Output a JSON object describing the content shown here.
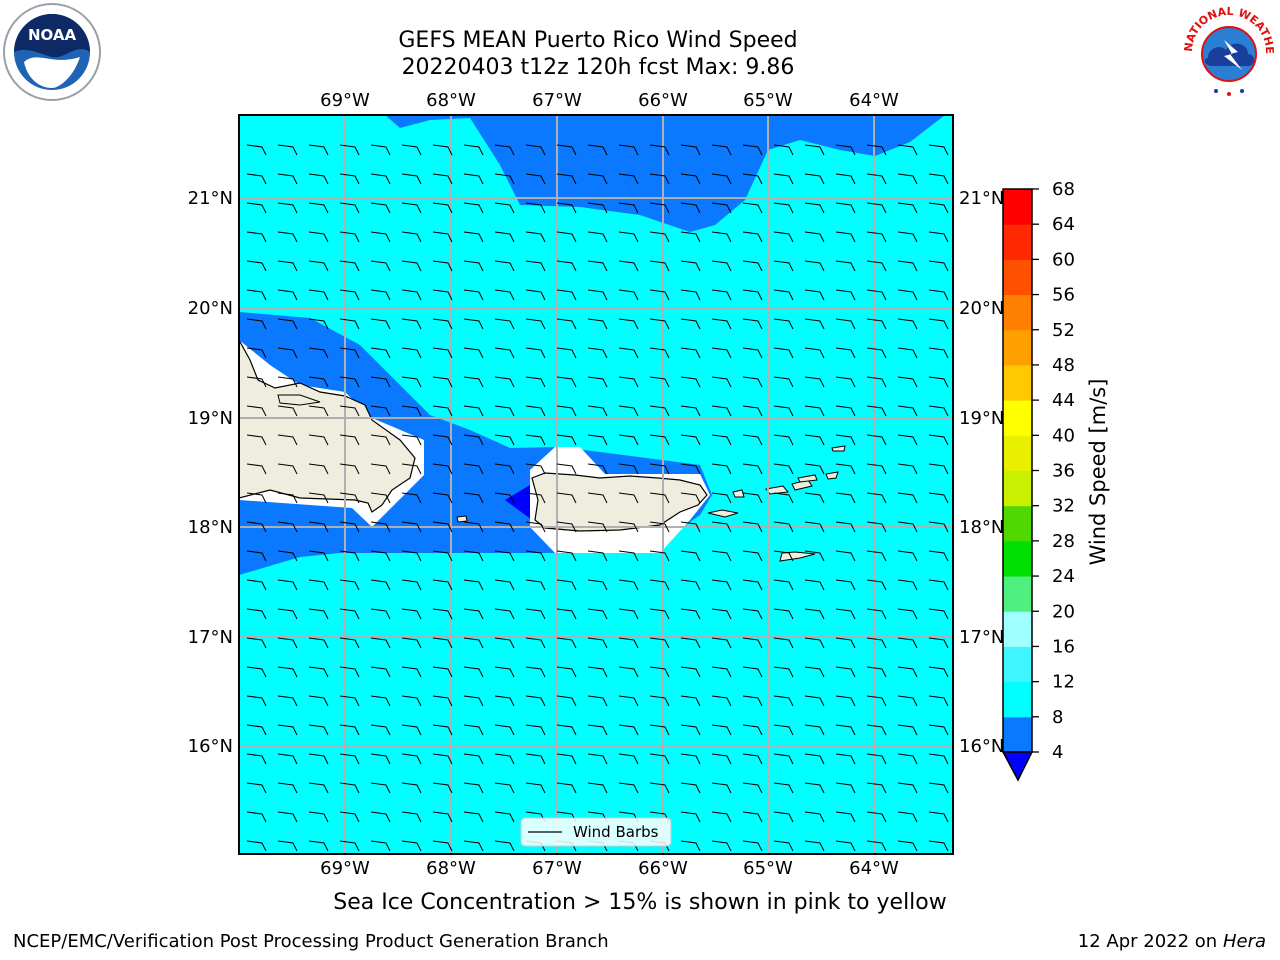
{
  "title_line1": "GEFS MEAN Puerto Rico Wind Speed",
  "title_line2": "20220403 t12z 120h fcst   Max: 9.86",
  "caption": "Sea Ice Concentration > 15% is shown in pink to yellow",
  "footer_left": "NCEP/EMC/Verification Post Processing Product Generation Branch",
  "footer_date": "12 Apr 2022 on ",
  "footer_machine": "Hera",
  "logos": {
    "left": "NOAA",
    "right": "NATIONAL WEATHER SERVICE"
  },
  "legend_label": "Wind Barbs",
  "colorbar": {
    "label": "Wind Speed [m/s]",
    "ticks": [
      "4",
      "8",
      "12",
      "16",
      "20",
      "24",
      "28",
      "32",
      "36",
      "40",
      "44",
      "48",
      "52",
      "56",
      "60",
      "64",
      "68"
    ],
    "colors": [
      "#0a78ff",
      "#00ffff",
      "#3ff5ff",
      "#a0ffff",
      "#50f080",
      "#00e000",
      "#50d800",
      "#c8f000",
      "#e8f000",
      "#ffff00",
      "#ffc800",
      "#ffa000",
      "#ff8000",
      "#ff5000",
      "#ff2800",
      "#ff0000"
    ],
    "under_color": "#0000ff"
  },
  "map": {
    "lon_labels": [
      "69°W",
      "68°W",
      "67°W",
      "66°W",
      "65°W",
      "64°W"
    ],
    "lat_labels": [
      "21°N",
      "20°N",
      "19°N",
      "18°N",
      "17°N",
      "16°N"
    ],
    "colors": {
      "ocean_cyan": "#00ffff",
      "dark_blue": "#0a78ff",
      "deep_blue": "#0000ff",
      "land": "#efedde",
      "grid": "#b0b0b0"
    }
  }
}
